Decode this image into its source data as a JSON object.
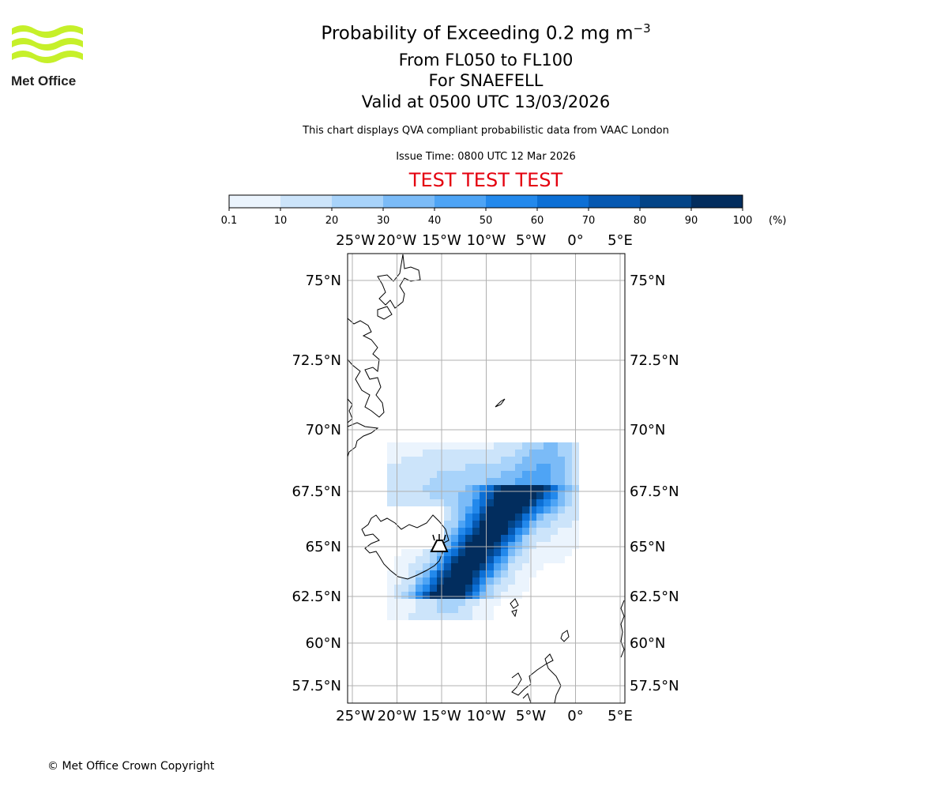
{
  "header": {
    "logo_text": "Met Office",
    "title_prefix": "Probability of Exceeding 0.2 mg m",
    "title_exponent": "−3",
    "flight_levels": "From FL050 to FL100",
    "volcano_line": "For SNAEFELL",
    "valid_line": "Valid at 0500 UTC 13/03/2026",
    "description": "This chart displays QVA compliant probabilistic data from VAAC London",
    "issue_time": "Issue Time: 0800 UTC 12 Mar 2026",
    "test_banner": "TEST TEST TEST"
  },
  "colors": {
    "test_banner": "#e4000f",
    "logo_green": "#c6f02a",
    "grid": "#b0b0b0",
    "bins": [
      "#ebf4fd",
      "#cce4fa",
      "#a8d3fa",
      "#7bbbf7",
      "#4ea4f5",
      "#2389ec",
      "#0c6fd5",
      "#0658b1",
      "#034487",
      "#022d5e"
    ]
  },
  "colorbar": {
    "bounds": [
      0.1,
      10,
      20,
      30,
      40,
      50,
      60,
      70,
      80,
      90,
      100
    ],
    "tick_labels": [
      "0.1",
      "10",
      "20",
      "30",
      "40",
      "50",
      "60",
      "70",
      "80",
      "90",
      "100"
    ],
    "unit": "(%)"
  },
  "map": {
    "lon_labels": [
      "25°W",
      "20°W",
      "15°W",
      "10°W",
      "5°W",
      "0°",
      "5°E"
    ],
    "lon_values": [
      -25,
      -20,
      -15,
      -10,
      -5,
      0,
      5
    ],
    "lat_labels": [
      "75°N",
      "72.5°N",
      "70°N",
      "67.5°N",
      "65°N",
      "62.5°N",
      "60°N",
      "57.5°N"
    ],
    "lat_values": [
      75,
      72.5,
      70,
      67.5,
      65,
      62.5,
      60,
      57.5
    ],
    "volcano_lon": -15.6,
    "volcano_lat": 64.8
  },
  "footer": {
    "copyright": "© Met Office Crown Copyright"
  }
}
